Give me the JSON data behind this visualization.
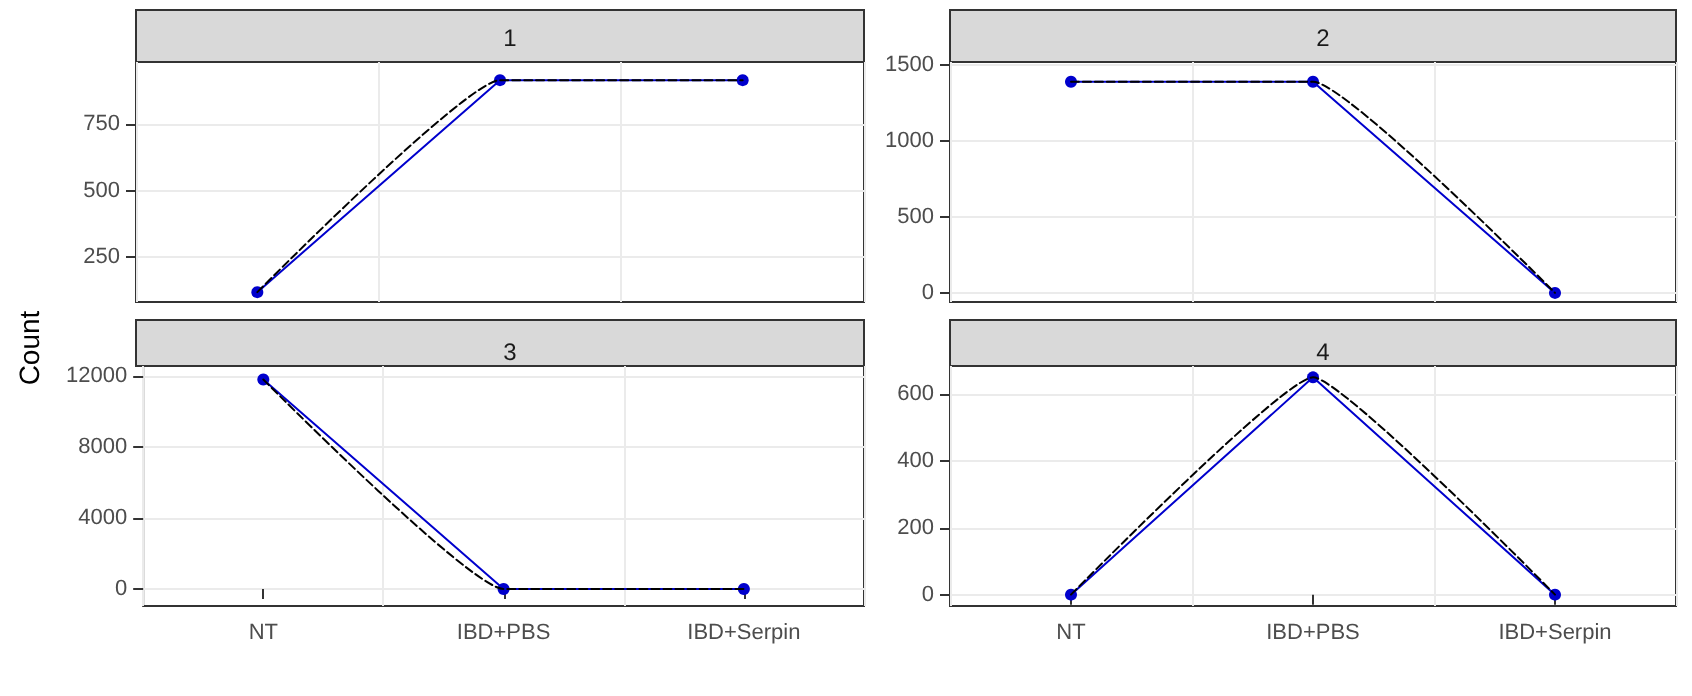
{
  "chart_data": [
    {
      "type": "line",
      "title": "1",
      "ylabel": "Count",
      "categories": [
        null,
        null,
        null
      ],
      "ylim": [
        83,
        983
      ],
      "yticks": [
        250,
        500,
        750
      ],
      "grid": true,
      "tick_labels": "y",
      "series": [
        {
          "color": "#0000cd",
          "values": [
            120,
            915,
            915
          ],
          "marker": "circle",
          "line_style": "solid"
        },
        {
          "color": "#000000",
          "values": [
            120,
            915,
            915
          ],
          "marker": "none",
          "line_style": "dashed"
        }
      ]
    },
    {
      "type": "line",
      "title": "2",
      "categories": [
        null,
        null,
        null
      ],
      "ylim": [
        -60,
        1520
      ],
      "yticks": [
        0,
        500,
        1000,
        1500
      ],
      "grid": true,
      "tick_labels": "y",
      "series": [
        {
          "color": "#0000cd",
          "values": [
            1390,
            1390,
            0
          ],
          "marker": "circle",
          "line_style": "solid"
        },
        {
          "color": "#000000",
          "values": [
            1390,
            1390,
            0
          ],
          "marker": "none",
          "line_style": "dashed"
        }
      ]
    },
    {
      "type": "line",
      "title": "3",
      "categories": [
        "NT",
        "IBD+PBS",
        "IBD+Serpin"
      ],
      "ylim": [
        -960,
        12560
      ],
      "yticks": [
        0,
        4000,
        8000,
        12000
      ],
      "grid": true,
      "series": [
        {
          "color": "#0000cd",
          "values": [
            11800,
            0,
            0
          ],
          "marker": "circle",
          "line_style": "solid"
        },
        {
          "color": "#000000",
          "values": [
            11800,
            0,
            0
          ],
          "marker": "none",
          "line_style": "dashed"
        }
      ]
    },
    {
      "type": "line",
      "title": "4",
      "categories": [
        "NT",
        "IBD+PBS",
        "IBD+Serpin"
      ],
      "ylim": [
        -34,
        684
      ],
      "yticks": [
        0,
        200,
        400,
        600
      ],
      "grid": true,
      "series": [
        {
          "color": "#0000cd",
          "values": [
            0,
            650,
            0
          ],
          "marker": "circle",
          "line_style": "solid"
        },
        {
          "color": "#000000",
          "values": [
            0,
            650,
            0
          ],
          "marker": "none",
          "line_style": "dashed"
        }
      ]
    }
  ]
}
